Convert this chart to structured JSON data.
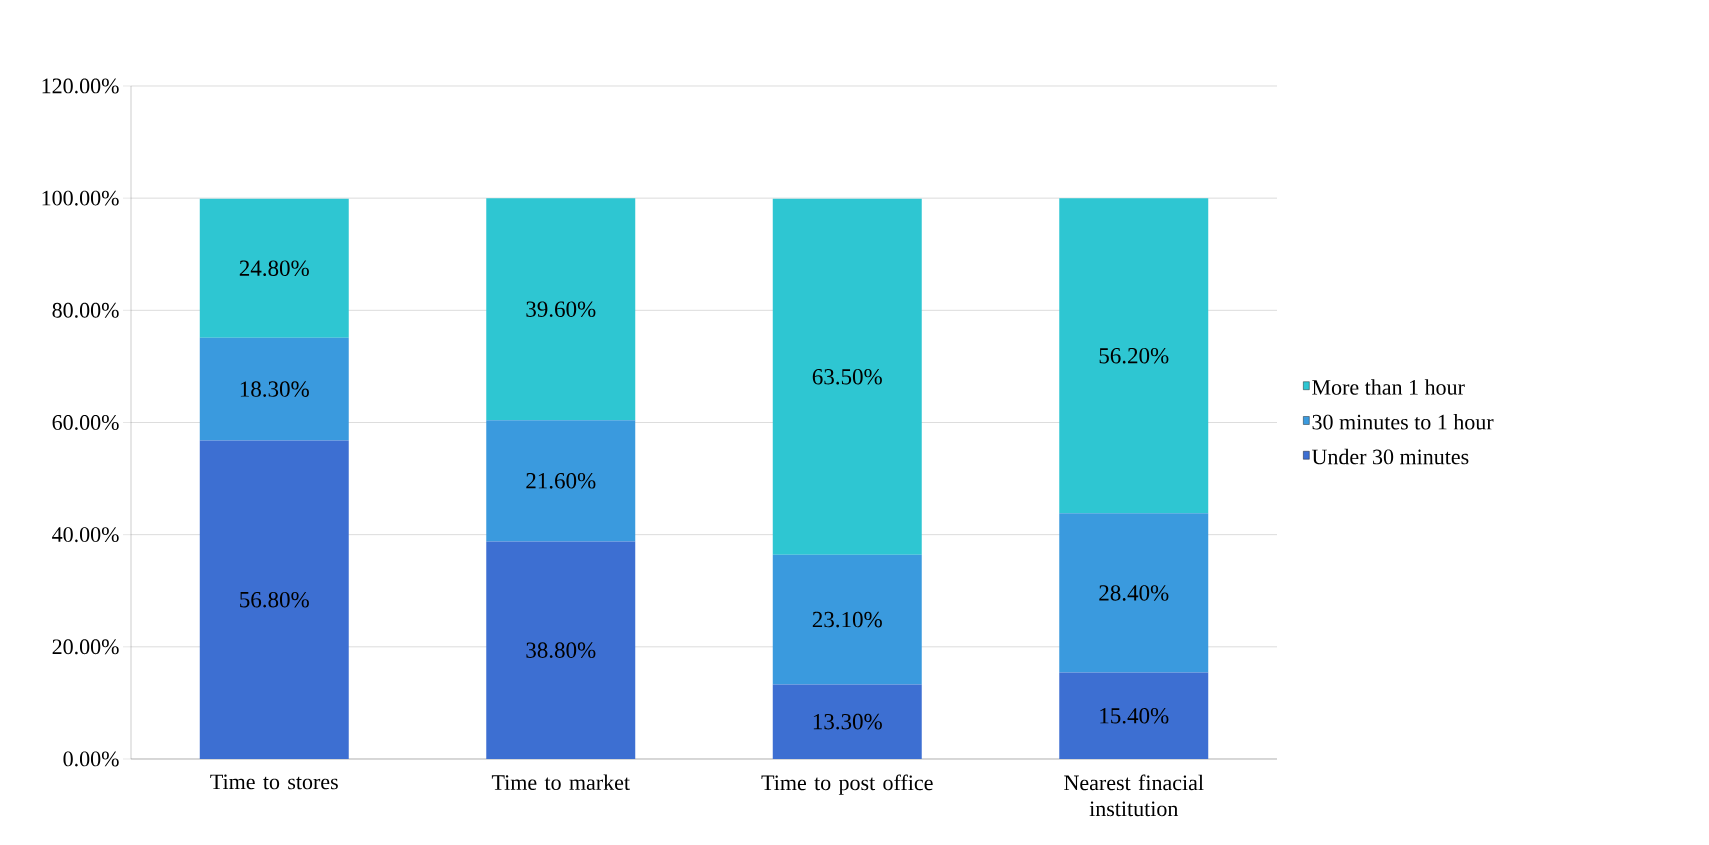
{
  "chart_data": {
    "type": "bar",
    "stacked": true,
    "categories": [
      "Time to stores",
      "Time to market",
      "Time to post office",
      "Nearest finacial institution"
    ],
    "series": [
      {
        "name": "Under 30 minutes",
        "color": "#3d6fd2",
        "values": [
          56.8,
          38.8,
          13.3,
          15.4
        ],
        "value_labels": [
          "56.80%",
          "38.80%",
          "13.30%",
          "15.40%"
        ]
      },
      {
        "name": "30 minutes to 1 hour",
        "color": "#3a9ade",
        "values": [
          18.3,
          21.6,
          23.1,
          28.4
        ],
        "value_labels": [
          "18.30%",
          "21.60%",
          "23.10%",
          "28.40%"
        ]
      },
      {
        "name": "More than 1 hour",
        "color": "#2ec6d2",
        "values": [
          24.8,
          39.6,
          63.5,
          56.2
        ],
        "value_labels": [
          "24.80%",
          "39.60%",
          "63.50%",
          "56.20%"
        ]
      }
    ],
    "ylim": [
      0,
      120
    ],
    "yticks": [
      {
        "value": 0,
        "label": "0.00%"
      },
      {
        "value": 20,
        "label": "20.00%"
      },
      {
        "value": 40,
        "label": "40.00%"
      },
      {
        "value": 60,
        "label": "60.00%"
      },
      {
        "value": 80,
        "label": "80.00%"
      },
      {
        "value": 100,
        "label": "100.00%"
      },
      {
        "value": 120,
        "label": "120.00%"
      }
    ],
    "grid": "y",
    "legend": "right"
  }
}
